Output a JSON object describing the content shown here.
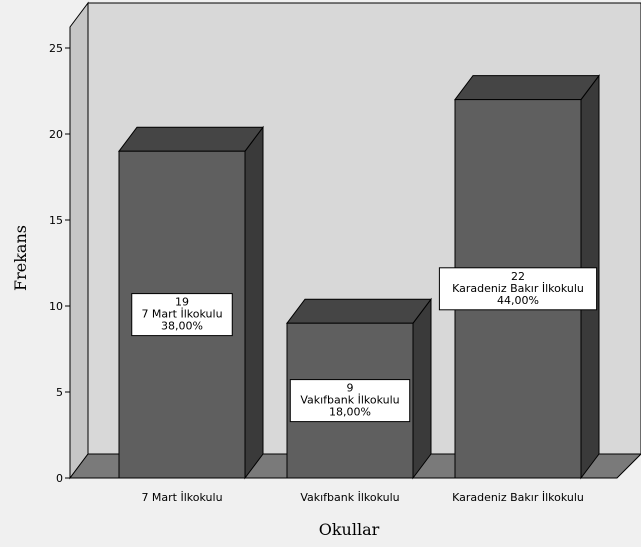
{
  "chart_data": {
    "type": "bar",
    "title": "",
    "xlabel": "Okullar",
    "ylabel": "Frekans",
    "ylim": [
      0,
      27
    ],
    "yticks": [
      0,
      5,
      10,
      15,
      20,
      25
    ],
    "categories": [
      "7 Mart İlkokulu",
      "Vakıfbank İlkokulu",
      "Karadeniz Bakır İlkokulu"
    ],
    "values": [
      19,
      9,
      22
    ],
    "percent_labels": [
      "38,00%",
      "18,00%",
      "44,00%"
    ],
    "grid": false,
    "legend": "none",
    "style": "3d-bar",
    "colors": {
      "bar_front": "#5f5f5f",
      "bar_side": "#3a3a3a",
      "bar_top": "#454545",
      "back_wall": "#d8d8d8",
      "side_wall": "#c6c6c6",
      "floor": "#7a7a7a",
      "background": "#f0f0f0"
    }
  }
}
